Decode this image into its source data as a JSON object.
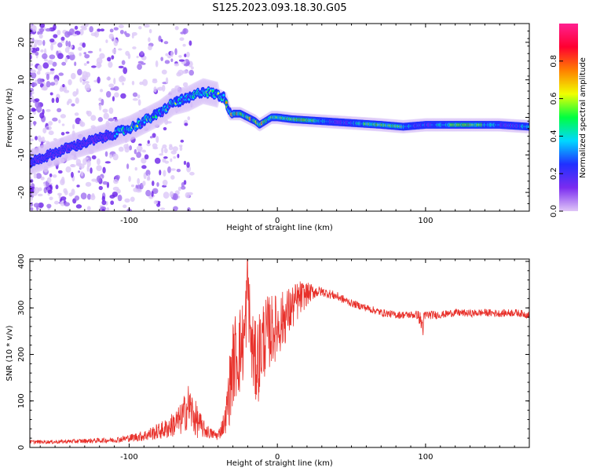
{
  "title": "S125.2023.093.18.30.G05",
  "colors": {
    "line": "#e8302a",
    "axis": "#000000",
    "spectro_low": "#7a2cf0",
    "spectro_faint": "#d9c2f7"
  },
  "chart_data": [
    {
      "type": "heatmap",
      "name": "spectrogram",
      "xlabel": "Height of straight line (km)",
      "ylabel": "Frequency (Hz)",
      "xlim": [
        -167,
        170
      ],
      "ylim": [
        -25,
        25
      ],
      "x_ticks": [
        -100,
        0,
        100
      ],
      "x_tick_labels": [
        "-100",
        "0",
        "100"
      ],
      "y_ticks": [
        -20,
        -10,
        0,
        10,
        20
      ],
      "y_tick_labels": [
        "-20",
        "-10",
        "0",
        "10",
        "20"
      ],
      "ridge": {
        "x": [
          -167,
          -140,
          -115,
          -100,
          -90,
          -80,
          -70,
          -60,
          -50,
          -40,
          -35,
          -32,
          -25,
          -20,
          -15,
          -12,
          -8,
          -4,
          0,
          10,
          30,
          50,
          70,
          85,
          100,
          130,
          150,
          170
        ],
        "y": [
          -12,
          -8,
          -5,
          -3,
          -1,
          1,
          4,
          5,
          7,
          6,
          5,
          1,
          1,
          0,
          -1,
          -2,
          -1,
          0,
          0,
          -0.5,
          -1,
          -1.5,
          -2,
          -2.5,
          -2,
          -2,
          -2,
          -2.5
        ]
      },
      "grid": false,
      "colorbar": {
        "label": "Normalized spectral amplitude",
        "range": [
          0,
          1
        ],
        "ticks": [
          0.0,
          0.2,
          0.4,
          0.6,
          0.8
        ],
        "tick_labels": [
          "0.0",
          "0.2",
          "0.4",
          "0.6",
          "0.8"
        ],
        "colormap": [
          "#e0c6f7",
          "#7b2cf0",
          "#2030ff",
          "#00d8ff",
          "#00ff40",
          "#f0ff00",
          "#ff8000",
          "#ff0030",
          "#ff2090"
        ]
      }
    },
    {
      "type": "line",
      "name": "snr",
      "xlabel": "Height of straight line (km)",
      "ylabel": "SNR (10 * v/v)",
      "xlim": [
        -167,
        170
      ],
      "ylim": [
        0,
        405
      ],
      "x_ticks": [
        -100,
        0,
        100
      ],
      "x_tick_labels": [
        "-100",
        "0",
        "100"
      ],
      "y_ticks": [
        0,
        100,
        200,
        300,
        400
      ],
      "y_tick_labels": [
        "0",
        "100",
        "200",
        "300",
        "400"
      ],
      "grid": false,
      "series": [
        {
          "x": [
            -167,
            -150,
            -130,
            -110,
            -100,
            -90,
            -80,
            -75,
            -70,
            -65,
            -60,
            -55,
            -50,
            -45,
            -40,
            -35,
            -32,
            -30,
            -28,
            -25,
            -22,
            -20,
            -18,
            -15,
            -12,
            -10,
            -5,
            0,
            5,
            10,
            15,
            20,
            25,
            30,
            40,
            50,
            60,
            70,
            80,
            90,
            95,
            98,
            100,
            110,
            120,
            130,
            140,
            150,
            160,
            170
          ],
          "y": [
            12,
            12,
            14,
            16,
            20,
            25,
            35,
            40,
            50,
            60,
            90,
            60,
            40,
            30,
            25,
            60,
            130,
            180,
            200,
            210,
            240,
            360,
            230,
            180,
            200,
            230,
            250,
            260,
            280,
            300,
            320,
            330,
            335,
            335,
            325,
            310,
            300,
            290,
            285,
            285,
            285,
            260,
            285,
            285,
            290,
            288,
            290,
            288,
            290,
            285
          ],
          "noise": [
            4,
            4,
            5,
            6,
            8,
            12,
            18,
            22,
            28,
            35,
            50,
            40,
            20,
            12,
            10,
            30,
            80,
            90,
            100,
            100,
            90,
            80,
            90,
            90,
            100,
            90,
            80,
            70,
            60,
            50,
            40,
            25,
            15,
            10,
            10,
            8,
            8,
            8,
            8,
            8,
            10,
            30,
            10,
            8,
            8,
            8,
            8,
            8,
            8,
            8
          ]
        }
      ]
    }
  ]
}
